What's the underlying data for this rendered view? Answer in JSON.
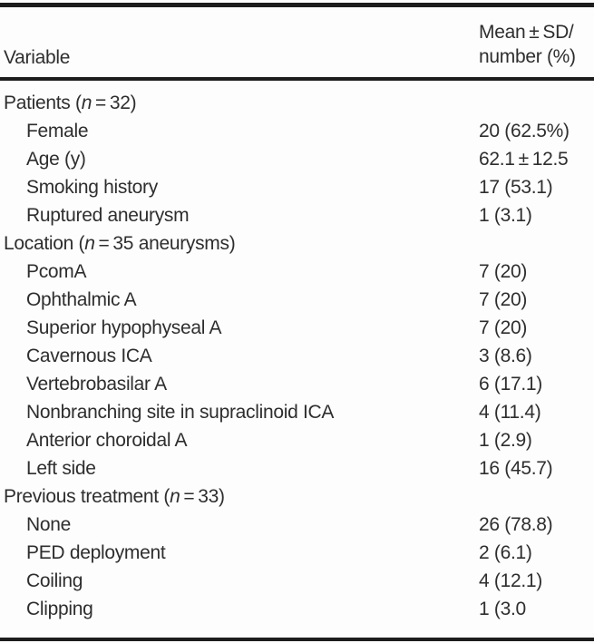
{
  "table": {
    "header": {
      "variable_label": "Variable",
      "value_col_line1": "Mean ± SD/",
      "value_col_line2": "number (%)"
    },
    "rows": [
      {
        "type": "section",
        "parts": [
          "Patients (",
          "n",
          " = 32)"
        ],
        "value": ""
      },
      {
        "type": "item",
        "label": "Female",
        "value": "20 (62.5%)"
      },
      {
        "type": "item",
        "label": "Age (y)",
        "value": "62.1 ± 12.5"
      },
      {
        "type": "item",
        "label": "Smoking history",
        "value": "17 (53.1)"
      },
      {
        "type": "item",
        "label": "Ruptured aneurysm",
        "value": "1 (3.1)"
      },
      {
        "type": "section",
        "parts": [
          "Location (",
          "n",
          " = 35 aneurysms)"
        ],
        "value": ""
      },
      {
        "type": "item",
        "label": "PcomA",
        "value": "7 (20)"
      },
      {
        "type": "item",
        "label": "Ophthalmic A",
        "value": "7 (20)"
      },
      {
        "type": "item",
        "label": "Superior hypophyseal A",
        "value": "7 (20)"
      },
      {
        "type": "item",
        "label": "Cavernous ICA",
        "value": "3 (8.6)"
      },
      {
        "type": "item",
        "label": "Vertebrobasilar A",
        "value": "6 (17.1)"
      },
      {
        "type": "item",
        "label": "Nonbranching site in supraclinoid ICA",
        "value": "4 (11.4)"
      },
      {
        "type": "item",
        "label": "Anterior choroidal A",
        "value": "1 (2.9)"
      },
      {
        "type": "item",
        "label": "Left side",
        "value": "16 (45.7)"
      },
      {
        "type": "section",
        "parts": [
          "Previous treatment (",
          "n",
          " = 33)"
        ],
        "value": ""
      },
      {
        "type": "item",
        "label": "None",
        "value": "26 (78.8)"
      },
      {
        "type": "item",
        "label": "PED deployment",
        "value": "2 (6.1)"
      },
      {
        "type": "item",
        "label": "Coiling",
        "value": "4 (12.1)"
      },
      {
        "type": "item",
        "label": "Clipping",
        "value": "1 (3.0"
      }
    ],
    "colors": {
      "text": "#2e2e2e",
      "rule": "#1d1d1d",
      "background": "#fdfdfd"
    }
  }
}
